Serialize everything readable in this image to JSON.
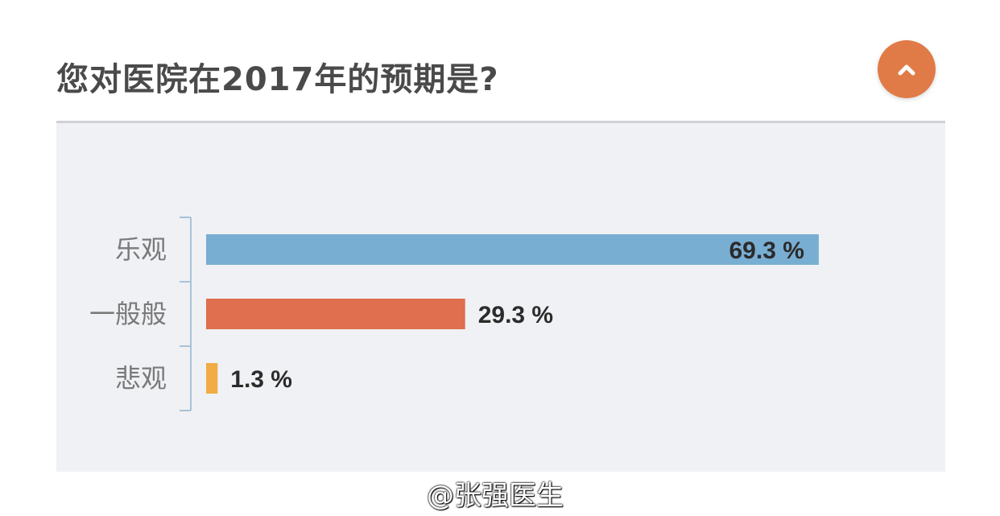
{
  "header": {
    "title": "您对医院在2017年的预期是?",
    "collapse_icon": "chevron-up-icon"
  },
  "chart_data": {
    "type": "bar",
    "orientation": "horizontal",
    "title": "您对医院在2017年的预期是?",
    "categories": [
      "乐观",
      "一般般",
      "悲观"
    ],
    "values": [
      69.3,
      29.3,
      1.3
    ],
    "value_labels": [
      "69.3 %",
      "29.3 %",
      "1.3 %"
    ],
    "colors": [
      "#79aed3",
      "#df6f4f",
      "#f1ac45"
    ],
    "xlim": [
      0,
      100
    ],
    "unit": "%",
    "grid": false,
    "legend": "none"
  },
  "watermark": "@张强医生",
  "colors": {
    "accent": "#e07b47",
    "panel_bg": "#f0f1f4",
    "title": "#4a4a4a"
  }
}
